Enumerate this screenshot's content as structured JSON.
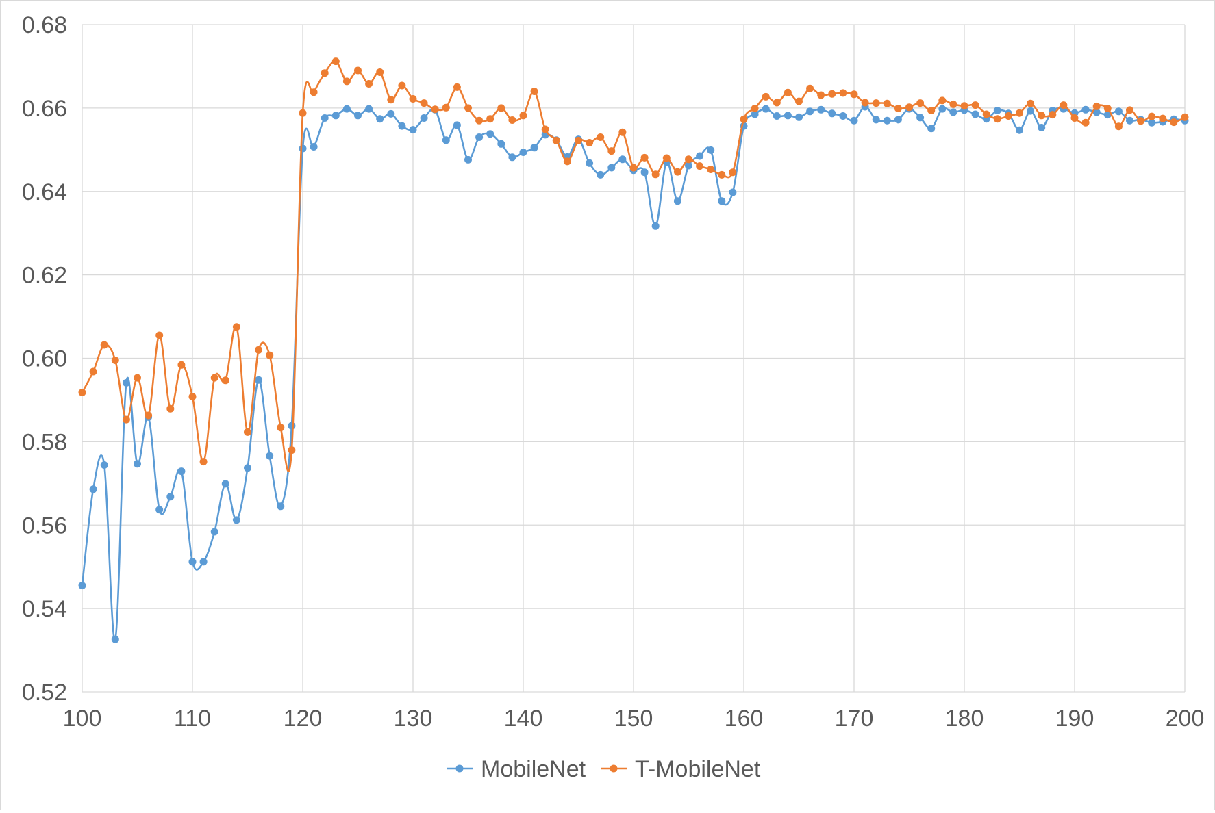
{
  "chart_data": {
    "type": "line",
    "title": "",
    "xlabel": "",
    "ylabel": "",
    "xlim": [
      100,
      200
    ],
    "ylim": [
      0.52,
      0.68
    ],
    "x_ticks": [
      "100",
      "110",
      "120",
      "130",
      "140",
      "150",
      "160",
      "170",
      "180",
      "190",
      "200"
    ],
    "y_ticks": [
      "0.52",
      "0.54",
      "0.56",
      "0.58",
      "0.60",
      "0.62",
      "0.64",
      "0.66",
      "0.68"
    ],
    "grid": true,
    "legend": "bottom-center",
    "x_start": 100,
    "series": [
      {
        "name": "MobileNet",
        "color": "#5b9bd5",
        "values": [
          0.5455,
          0.5686,
          0.5744,
          0.5326,
          0.5941,
          0.5747,
          0.5859,
          0.5637,
          0.5668,
          0.5729,
          0.5512,
          0.5512,
          0.5584,
          0.5699,
          0.5612,
          0.5737,
          0.5948,
          0.5766,
          0.5645,
          0.5838,
          0.6503,
          0.6507,
          0.6576,
          0.6582,
          0.6598,
          0.6582,
          0.6598,
          0.6574,
          0.6586,
          0.6557,
          0.6548,
          0.6576,
          0.6596,
          0.6523,
          0.6559,
          0.6476,
          0.653,
          0.6538,
          0.6514,
          0.6482,
          0.6494,
          0.6505,
          0.6536,
          0.6523,
          0.6483,
          0.6525,
          0.6468,
          0.644,
          0.6457,
          0.6477,
          0.6451,
          0.6446,
          0.6317,
          0.647,
          0.6377,
          0.6462,
          0.6485,
          0.6499,
          0.6377,
          0.6398,
          0.6557,
          0.6585,
          0.6598,
          0.6581,
          0.6582,
          0.6578,
          0.6592,
          0.6596,
          0.6587,
          0.6581,
          0.657,
          0.6603,
          0.6572,
          0.657,
          0.6572,
          0.6598,
          0.6577,
          0.6551,
          0.6598,
          0.659,
          0.6595,
          0.6585,
          0.6574,
          0.6594,
          0.6587,
          0.6547,
          0.6593,
          0.6553,
          0.6594,
          0.6598,
          0.6588,
          0.6596,
          0.659,
          0.6584,
          0.6592,
          0.657,
          0.6572,
          0.6565,
          0.6567,
          0.6573,
          0.657
        ]
      },
      {
        "name": "T-MobileNet",
        "color": "#ed7d31",
        "values": [
          0.5918,
          0.5968,
          0.6032,
          0.5995,
          0.5853,
          0.5953,
          0.5863,
          0.6055,
          0.5879,
          0.5984,
          0.5908,
          0.5752,
          0.5953,
          0.5947,
          0.6075,
          0.5823,
          0.602,
          0.6007,
          0.5834,
          0.578,
          0.6588,
          0.6638,
          0.6684,
          0.6712,
          0.6664,
          0.669,
          0.6658,
          0.6686,
          0.662,
          0.6654,
          0.6622,
          0.6612,
          0.6597,
          0.6601,
          0.665,
          0.66,
          0.657,
          0.6574,
          0.66,
          0.6571,
          0.6582,
          0.664,
          0.6549,
          0.6522,
          0.6472,
          0.6522,
          0.6517,
          0.653,
          0.6497,
          0.6542,
          0.6457,
          0.6481,
          0.6441,
          0.648,
          0.6447,
          0.6477,
          0.6461,
          0.6453,
          0.644,
          0.6446,
          0.6573,
          0.6599,
          0.6627,
          0.6613,
          0.6637,
          0.6616,
          0.6647,
          0.6631,
          0.6634,
          0.6636,
          0.6633,
          0.6613,
          0.6612,
          0.6611,
          0.6599,
          0.6602,
          0.6612,
          0.6594,
          0.6618,
          0.6609,
          0.6605,
          0.6607,
          0.6585,
          0.6574,
          0.6581,
          0.6588,
          0.6611,
          0.6582,
          0.6584,
          0.6607,
          0.6576,
          0.6565,
          0.6604,
          0.6599,
          0.6556,
          0.6595,
          0.6569,
          0.658,
          0.6575,
          0.6566,
          0.6578
        ]
      }
    ]
  }
}
